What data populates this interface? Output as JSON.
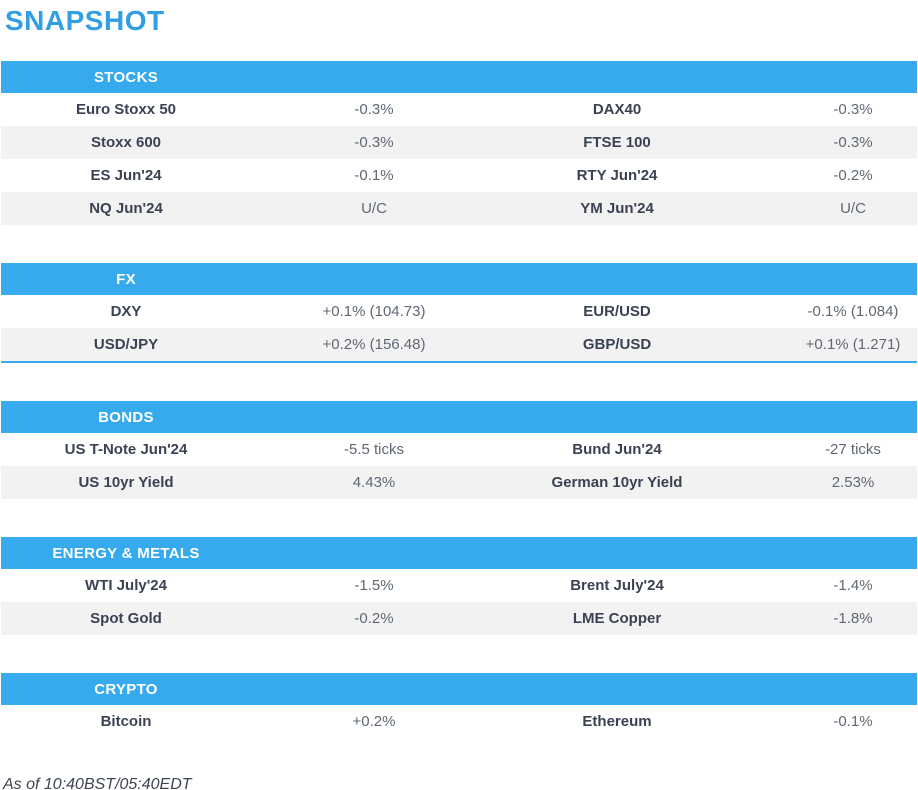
{
  "page": {
    "title": "SNAPSHOT",
    "footer": "As of 10:40BST/05:40EDT"
  },
  "colors": {
    "accent_blue": "#36aaec",
    "title_blue": "#339fe3",
    "row_alt_gray": "#f2f2f2",
    "label_text": "#3a4254",
    "value_text": "#5f6874"
  },
  "tables": [
    {
      "header": "STOCKS",
      "rows": [
        [
          "Euro Stoxx 50",
          "-0.3%",
          "DAX40",
          "-0.3%"
        ],
        [
          "Stoxx 600",
          "-0.3%",
          "FTSE 100",
          "-0.3%"
        ],
        [
          "ES Jun'24",
          "-0.1%",
          "RTY Jun'24",
          "-0.2%"
        ],
        [
          "NQ Jun'24",
          "U/C",
          "YM Jun'24",
          "U/C"
        ]
      ]
    },
    {
      "header": "FX",
      "rows": [
        [
          "DXY",
          "+0.1% (104.73)",
          "EUR/USD",
          "-0.1% (1.084)"
        ],
        [
          "USD/JPY",
          "+0.2% (156.48)",
          "GBP/USD",
          "+0.1% (1.271)"
        ]
      ]
    },
    {
      "header": "BONDS",
      "rows": [
        [
          "US T-Note Jun'24",
          "-5.5 ticks",
          "Bund Jun'24",
          "-27 ticks"
        ],
        [
          "US 10yr Yield",
          "4.43%",
          "German 10yr Yield",
          "2.53%"
        ]
      ]
    },
    {
      "header": "ENERGY & METALS",
      "rows": [
        [
          "WTI July'24",
          "-1.5%",
          "Brent July'24",
          "-1.4%"
        ],
        [
          "Spot Gold",
          "-0.2%",
          "LME Copper",
          "-1.8%"
        ]
      ]
    },
    {
      "header": "CRYPTO",
      "rows": [
        [
          "Bitcoin",
          "+0.2%",
          "Ethereum",
          "-0.1%"
        ]
      ]
    }
  ]
}
